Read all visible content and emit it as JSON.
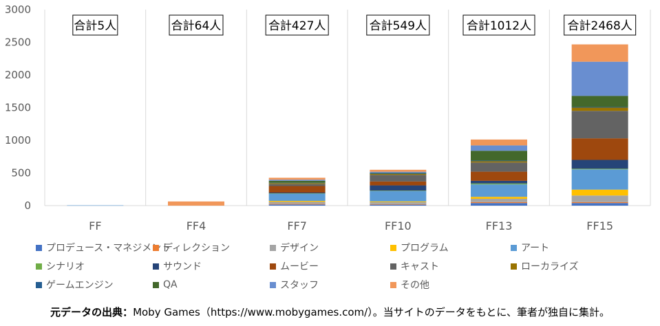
{
  "chart_data": {
    "type": "bar",
    "stacked": true,
    "categories": [
      "FF",
      "FF4",
      "FF7",
      "FF10",
      "FF13",
      "FF15"
    ],
    "ylim": [
      0,
      3000
    ],
    "yticks": [
      0,
      500,
      1000,
      1500,
      2000,
      2500,
      3000
    ],
    "grid": "vertical separators between categories",
    "legend_position": "bottom",
    "totals_labels": [
      "合計5人",
      "合計64人",
      "合計427人",
      "合計549人",
      "合計1012人",
      "合計2468人"
    ],
    "series": [
      {
        "name": "プロデュース・マネジメント",
        "color": "#4472C4",
        "values": [
          0,
          0,
          18,
          15,
          40,
          40
        ]
      },
      {
        "name": "ディレクション",
        "color": "#ED7D31",
        "values": [
          0,
          0,
          10,
          8,
          15,
          15
        ]
      },
      {
        "name": "デザイン",
        "color": "#A5A5A5",
        "values": [
          0,
          0,
          30,
          30,
          50,
          100
        ]
      },
      {
        "name": "プログラム",
        "color": "#FFC000",
        "values": [
          0,
          0,
          15,
          12,
          30,
          90
        ]
      },
      {
        "name": "アート",
        "color": "#5B9BD5",
        "values": [
          5,
          0,
          110,
          160,
          190,
          310
        ]
      },
      {
        "name": "シナリオ",
        "color": "#70AD47",
        "values": [
          0,
          0,
          5,
          5,
          15,
          10
        ]
      },
      {
        "name": "サウンド",
        "color": "#264478",
        "values": [
          0,
          0,
          12,
          80,
          40,
          135
        ]
      },
      {
        "name": "ムービー",
        "color": "#9E480E",
        "values": [
          0,
          0,
          100,
          60,
          140,
          330
        ]
      },
      {
        "name": "キャスト",
        "color": "#636363",
        "values": [
          0,
          0,
          30,
          100,
          140,
          420
        ]
      },
      {
        "name": "ローカライズ",
        "color": "#997300",
        "values": [
          0,
          0,
          15,
          15,
          20,
          50
        ]
      },
      {
        "name": "ゲームエンジン",
        "color": "#255E91",
        "values": [
          0,
          0,
          5,
          5,
          10,
          10
        ]
      },
      {
        "name": "QA",
        "color": "#43682B",
        "values": [
          0,
          0,
          30,
          10,
          150,
          170
        ]
      },
      {
        "name": "スタッフ",
        "color": "#698ED0",
        "values": [
          0,
          0,
          17,
          19,
          82,
          523
        ]
      },
      {
        "name": "その他",
        "color": "#F1975A",
        "values": [
          0,
          64,
          30,
          30,
          90,
          265
        ]
      }
    ]
  },
  "source": {
    "lead": "元データの出典：",
    "text": "Moby Games（https://www.mobygames.com/）。当サイトのデータをもとに、筆者が独自に集計。"
  }
}
